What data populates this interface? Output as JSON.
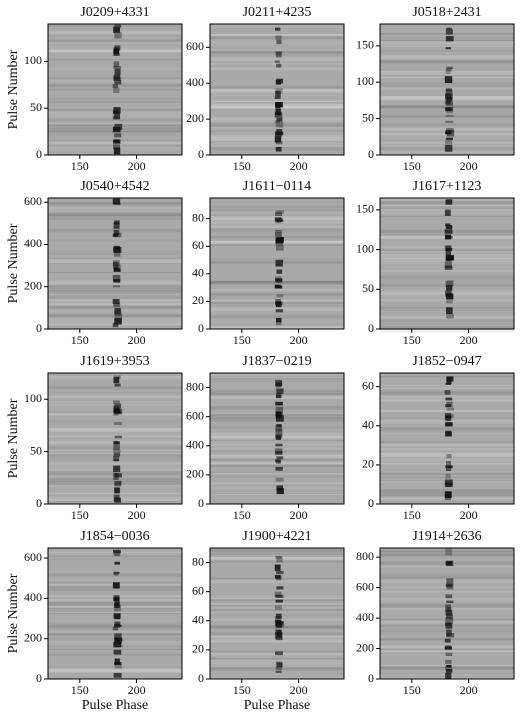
{
  "chart_data": [
    {
      "type": "image",
      "title": "J0209+4331",
      "xlim": [
        122,
        240
      ],
      "xticks": [
        150,
        200
      ],
      "ylim": [
        0,
        140
      ],
      "yticks": [
        0,
        50,
        100
      ],
      "ylabel": "Pulse Number"
    },
    {
      "type": "image",
      "title": "J0211+4235",
      "xlim": [
        122,
        240
      ],
      "xticks": [
        150,
        200
      ],
      "ylim": [
        0,
        730
      ],
      "yticks": [
        0,
        200,
        400,
        600
      ]
    },
    {
      "type": "image",
      "title": "J0518+2431",
      "xlim": [
        122,
        240
      ],
      "xticks": [
        150,
        200
      ],
      "ylim": [
        0,
        180
      ],
      "yticks": [
        0,
        50,
        100,
        150
      ]
    },
    {
      "type": "image",
      "title": "J0540+4542",
      "xlim": [
        122,
        240
      ],
      "xticks": [
        150,
        200
      ],
      "ylim": [
        0,
        620
      ],
      "yticks": [
        0,
        200,
        400,
        600
      ],
      "ylabel": "Pulse Number"
    },
    {
      "type": "image",
      "title": "J1611−0114",
      "xlim": [
        122,
        240
      ],
      "xticks": [
        150,
        200
      ],
      "ylim": [
        0,
        95
      ],
      "yticks": [
        0,
        20,
        40,
        60,
        80
      ]
    },
    {
      "type": "image",
      "title": "J1617+1123",
      "xlim": [
        122,
        240
      ],
      "xticks": [
        150,
        200
      ],
      "ylim": [
        0,
        165
      ],
      "yticks": [
        0,
        50,
        100,
        150
      ]
    },
    {
      "type": "image",
      "title": "J1619+3953",
      "xlim": [
        122,
        240
      ],
      "xticks": [
        150,
        200
      ],
      "ylim": [
        0,
        125
      ],
      "yticks": [
        0,
        50,
        100
      ],
      "ylabel": "Pulse Number"
    },
    {
      "type": "image",
      "title": "J1837−0219",
      "xlim": [
        122,
        240
      ],
      "xticks": [
        150,
        200
      ],
      "ylim": [
        0,
        900
      ],
      "yticks": [
        0,
        200,
        400,
        600,
        800
      ]
    },
    {
      "type": "image",
      "title": "J1852−0947",
      "xlim": [
        122,
        240
      ],
      "xticks": [
        150,
        200
      ],
      "ylim": [
        0,
        67
      ],
      "yticks": [
        0,
        20,
        40,
        60
      ]
    },
    {
      "type": "image",
      "title": "J1854−0036",
      "xlim": [
        122,
        240
      ],
      "xticks": [
        150,
        200
      ],
      "ylim": [
        0,
        650
      ],
      "yticks": [
        0,
        200,
        400,
        600
      ],
      "ylabel": "Pulse Number",
      "xlabel": "Pulse Phase"
    },
    {
      "type": "image",
      "title": "J1900+4221",
      "xlim": [
        122,
        240
      ],
      "xticks": [
        150,
        200
      ],
      "ylim": [
        0,
        90
      ],
      "yticks": [
        0,
        20,
        40,
        60,
        80
      ],
      "xlabel": "Pulse Phase"
    },
    {
      "type": "image",
      "title": "J1914+2636",
      "xlim": [
        122,
        240
      ],
      "xticks": [
        150,
        200
      ],
      "ylim": [
        0,
        860
      ],
      "yticks": [
        0,
        200,
        400,
        600,
        800
      ]
    }
  ]
}
